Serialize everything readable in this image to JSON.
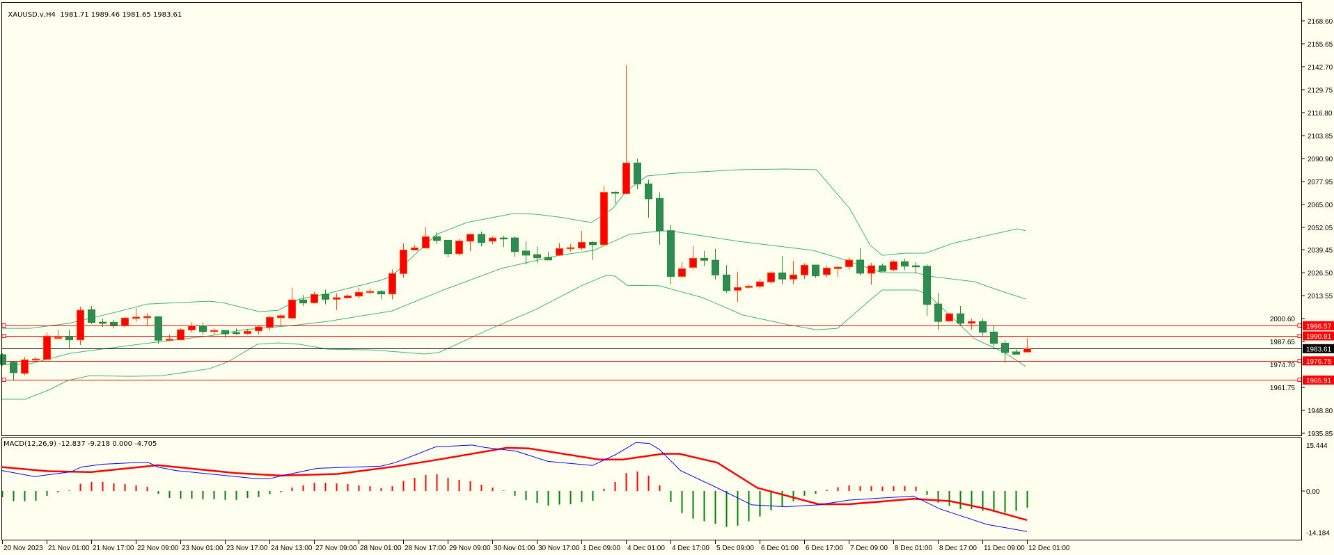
{
  "header": {
    "symbol_label": "XAUUSD.v,H4",
    "ohlc_readout": "1981.71 1989.46 1981.65 1983.61"
  },
  "macd_header": {
    "label": "MACD(12,26,9) -12.837 -9.218 0.000 -4.705"
  },
  "colors": {
    "background": "#fffff0",
    "bull_body": "#ff0000",
    "bull_outline": "#ff4500",
    "bear_body": "#2e8b57",
    "bear_outline": "#228b22",
    "bands": "#3cb371",
    "macd_main": "#0000ff",
    "macd_signal": "#ff0000",
    "level_line": "#ff0000",
    "bid_line": "#000000"
  },
  "price_axis": {
    "ticks": [
      "2168.60",
      "2155.65",
      "2142.70",
      "2129.75",
      "2116.80",
      "2103.85",
      "2090.90",
      "2077.95",
      "2065.00",
      "2052.05",
      "2039.45",
      "2026.50",
      "2013.55",
      "2000.60",
      "1987.65",
      "1974.70",
      "1961.75",
      "1948.80",
      "1935.85"
    ],
    "bid": {
      "price": 1983.61,
      "label": "1983.61"
    },
    "levels": [
      {
        "price": 1996.57,
        "label": "1996.57"
      },
      {
        "price": 1990.81,
        "label": "1990.81"
      },
      {
        "price": 1976.75,
        "label": "1976.75"
      },
      {
        "price": 1965.91,
        "label": "1965.91"
      }
    ]
  },
  "macd_axis": {
    "ticks": [
      "15.444",
      "0.00",
      "-14.184"
    ],
    "values": [
      15.444,
      0,
      -14.184
    ]
  },
  "time_axis": {
    "labels": [
      "20 Nov 2023",
      "21 Nov 01:00",
      "21 Nov 17:00",
      "22 Nov 09:00",
      "23 Nov 01:00",
      "23 Nov 17:00",
      "24 Nov 13:00",
      "27 Nov 09:00",
      "28 Nov 01:00",
      "28 Nov 17:00",
      "29 Nov 09:00",
      "30 Nov 01:00",
      "30 Nov 17:00",
      "1 Dec 09:00",
      "4 Dec 01:00",
      "4 Dec 17:00",
      "5 Dec 09:00",
      "6 Dec 01:00",
      "6 Dec 17:00",
      "7 Dec 09:00",
      "8 Dec 01:00",
      "8 Dec 17:00",
      "11 Dec 09:00",
      "12 Dec 01:00"
    ],
    "bars_per_label": 4
  },
  "chart_data": {
    "type": "candlestick",
    "symbol": "XAUUSD.v",
    "timeframe": "H4",
    "ylim": [
      1935.85,
      2168.6
    ],
    "ohlc": [
      [
        1980.2,
        1981,
        1973.9,
        1974.7
      ],
      [
        1975.9,
        1976.3,
        1965.7,
        1970.1
      ],
      [
        1969.7,
        1978.9,
        1968.7,
        1977.3
      ],
      [
        1977.2,
        1978.9,
        1975.8,
        1977.8
      ],
      [
        1977.6,
        1992.7,
        1977.5,
        1990.7
      ],
      [
        1989.5,
        1994.3,
        1989.3,
        1990
      ],
      [
        1990.5,
        1994.3,
        1984.1,
        1988.6
      ],
      [
        1988.6,
        2007.3,
        1985.7,
        2005.3
      ],
      [
        2005.6,
        2007.7,
        1997.6,
        1998.4
      ],
      [
        1998.6,
        2000.5,
        1995.9,
        1997.9
      ],
      [
        1998.5,
        1999.8,
        1995.1,
        1996.8
      ],
      [
        1996.6,
        2001.5,
        1995.6,
        2000.9
      ],
      [
        2000.7,
        2006.4,
        1998.8,
        2001.4
      ],
      [
        2001.1,
        2003.5,
        1996.6,
        2001.8
      ],
      [
        2001.6,
        2002,
        1986.5,
        1988.4
      ],
      [
        1988.3,
        1991.6,
        1988,
        1988.9
      ],
      [
        1988.6,
        1995.1,
        1988.6,
        1994.3
      ],
      [
        1994.2,
        1998.4,
        1992.8,
        1996.4
      ],
      [
        1996.3,
        1998.5,
        1991.6,
        1993.3
      ],
      [
        1993.3,
        1995.1,
        1991.5,
        1993.9
      ],
      [
        1993.9,
        1994,
        1989.7,
        1992
      ],
      [
        1992.7,
        1995.1,
        1991.5,
        1992.1
      ],
      [
        1992.2,
        1994.7,
        1991.5,
        1993.4
      ],
      [
        1993.7,
        1996.5,
        1991.7,
        1995.9
      ],
      [
        1995.6,
        2002.2,
        1993.6,
        2001.3
      ],
      [
        2001.1,
        2003.2,
        1996.5,
        2002.2
      ],
      [
        2000.9,
        2018.1,
        2000.3,
        2011.1
      ],
      [
        2011.1,
        2014,
        2007.6,
        2009.4
      ],
      [
        2009.5,
        2015.8,
        2009,
        2014.2
      ],
      [
        2014.2,
        2016.9,
        2008.6,
        2011.5
      ],
      [
        2011.5,
        2014.9,
        2005.4,
        2012.4
      ],
      [
        2012.3,
        2014.3,
        2012.1,
        2013.4
      ],
      [
        2013.3,
        2018.1,
        2011.9,
        2015.4
      ],
      [
        2015.4,
        2017.5,
        2014.4,
        2015.9
      ],
      [
        2015.9,
        2016.8,
        2011.6,
        2014.5
      ],
      [
        2014.5,
        2028.4,
        2011.3,
        2026
      ],
      [
        2026,
        2043,
        2023.6,
        2039.3
      ],
      [
        2039.3,
        2042.2,
        2039,
        2040.5
      ],
      [
        2040.4,
        2052.1,
        2040.4,
        2046.8
      ],
      [
        2046.8,
        2049.3,
        2042.6,
        2044.7
      ],
      [
        2044.8,
        2044.8,
        2035.1,
        2037.2
      ],
      [
        2037.2,
        2045.7,
        2036.2,
        2044.4
      ],
      [
        2044.3,
        2048.5,
        2038.7,
        2048.1
      ],
      [
        2048.1,
        2049.7,
        2041.4,
        2043.5
      ],
      [
        2044.3,
        2046.9,
        2042.5,
        2046.1
      ],
      [
        2046.1,
        2047.3,
        2041,
        2045.7
      ],
      [
        2046.1,
        2047,
        2035.5,
        2038.4
      ],
      [
        2038.7,
        2044.2,
        2031.3,
        2036.4
      ],
      [
        2036.7,
        2041.2,
        2032,
        2034.9
      ],
      [
        2035.1,
        2038.3,
        2033.7,
        2033.7
      ],
      [
        2036.4,
        2043.2,
        2035.9,
        2040.1
      ],
      [
        2040,
        2042.7,
        2038.4,
        2040.6
      ],
      [
        2040.4,
        2050.1,
        2039.1,
        2043.6
      ],
      [
        2043.6,
        2044.3,
        2033.7,
        2042.3
      ],
      [
        2042.3,
        2075.5,
        2042,
        2071.8
      ],
      [
        2071.9,
        2072.4,
        2065.5,
        2071.4
      ],
      [
        2071.1,
        2143.7,
        2071,
        2088.4
      ],
      [
        2088.4,
        2090.8,
        2073.7,
        2076.6
      ],
      [
        2076.6,
        2079,
        2057.6,
        2068.2
      ],
      [
        2068.4,
        2071.8,
        2042.3,
        2050.1
      ],
      [
        2050.2,
        2053.5,
        2020.1,
        2024.4
      ],
      [
        2024.4,
        2032.5,
        2024,
        2028.7
      ],
      [
        2029.5,
        2041.4,
        2028.4,
        2034.6
      ],
      [
        2034.6,
        2038.7,
        2030.2,
        2033.5
      ],
      [
        2033.5,
        2039.9,
        2022.7,
        2025.2
      ],
      [
        2025.2,
        2030.7,
        2015.2,
        2016.4
      ],
      [
        2016.6,
        2026.9,
        2009.9,
        2018.1
      ],
      [
        2018.2,
        2019.9,
        2017.6,
        2018.9
      ],
      [
        2018.8,
        2022.8,
        2017.5,
        2021.3
      ],
      [
        2021.3,
        2027.3,
        2020.4,
        2026.4
      ],
      [
        2026.4,
        2035.9,
        2020,
        2022.9
      ],
      [
        2022.9,
        2033.2,
        2020,
        2025.2
      ],
      [
        2025.2,
        2031.8,
        2023,
        2030.7
      ],
      [
        2030.8,
        2030.8,
        2023.5,
        2024.7
      ],
      [
        2025.4,
        2030.4,
        2023.8,
        2029.1
      ],
      [
        2028.8,
        2030.2,
        2024,
        2029.6
      ],
      [
        2029.9,
        2035.1,
        2028.1,
        2033.6
      ],
      [
        2033.6,
        2040.3,
        2024.9,
        2026.2
      ],
      [
        2026.2,
        2032,
        2019.8,
        2030.4
      ],
      [
        2030.4,
        2031.6,
        2027.3,
        2027.3
      ],
      [
        2028.2,
        2033.5,
        2027.3,
        2032.7
      ],
      [
        2032.7,
        2034.3,
        2027.9,
        2030.2
      ],
      [
        2030.4,
        2032.4,
        2026,
        2029.8
      ],
      [
        2030.1,
        2031.2,
        2002.2,
        2008.6
      ],
      [
        2008.8,
        2015.1,
        1994.3,
        1999
      ],
      [
        1999.2,
        2003.7,
        1999,
        2003.3
      ],
      [
        2003.3,
        2007.7,
        1996.8,
        1998
      ],
      [
        1998,
        2000.5,
        1994.3,
        1998.9
      ],
      [
        1998.9,
        2000.5,
        1990.9,
        1992.9
      ],
      [
        1993,
        1996.8,
        1985,
        1986.6
      ],
      [
        1986.7,
        1988.4,
        1975.6,
        1981.5
      ],
      [
        1981.8,
        1983.3,
        1980.5,
        1980.5
      ],
      [
        1981.71,
        1989.46,
        1981.65,
        1983.61
      ]
    ],
    "bollinger": {
      "upper": [
        [
          0,
          1995.1
        ],
        [
          2.5,
          1995.1
        ],
        [
          6,
          1997.9
        ],
        [
          10.4,
          2004.5
        ],
        [
          13,
          2008.8
        ],
        [
          18.6,
          2010.4
        ],
        [
          19.8,
          2009.6
        ],
        [
          23.1,
          2004.5
        ],
        [
          24.8,
          2005.3
        ],
        [
          26.7,
          2011.6
        ],
        [
          29.2,
          2014.7
        ],
        [
          34,
          2022.2
        ],
        [
          35,
          2024.6
        ],
        [
          39,
          2048.1
        ],
        [
          41.7,
          2054.8
        ],
        [
          45.9,
          2059.9
        ],
        [
          47.9,
          2059.5
        ],
        [
          50,
          2057.9
        ],
        [
          52.9,
          2054.8
        ],
        [
          54.8,
          2062.6
        ],
        [
          56,
          2072.4
        ],
        [
          57.9,
          2081.1
        ],
        [
          60.4,
          2082.6
        ],
        [
          66.1,
          2084.6
        ],
        [
          70.3,
          2085
        ],
        [
          73.1,
          2084.6
        ],
        [
          76.1,
          2062.6
        ],
        [
          77.9,
          2042.2
        ],
        [
          79,
          2036.3
        ],
        [
          81.1,
          2037.5
        ],
        [
          82.9,
          2037.5
        ],
        [
          85.3,
          2043
        ],
        [
          91.1,
          2051.2
        ],
        [
          91.9,
          2050.1
        ]
      ],
      "middle": [
        [
          0,
          1974.7
        ],
        [
          2.5,
          1975.1
        ],
        [
          6.1,
          1981
        ],
        [
          12.3,
          1986.1
        ],
        [
          18.6,
          1990.8
        ],
        [
          21.7,
          1994.3
        ],
        [
          26.1,
          1996.7
        ],
        [
          29.2,
          1999
        ],
        [
          35,
          2004.9
        ],
        [
          39.6,
          2016.7
        ],
        [
          44.8,
          2028.9
        ],
        [
          50,
          2036.3
        ],
        [
          53.1,
          2039.1
        ],
        [
          54.2,
          2042.2
        ],
        [
          56.3,
          2048.1
        ],
        [
          59.2,
          2050.1
        ],
        [
          60.4,
          2049.7
        ],
        [
          66.1,
          2044.2
        ],
        [
          72.8,
          2039.1
        ],
        [
          75.3,
          2034.4
        ],
        [
          79,
          2026.5
        ],
        [
          82.1,
          2026.5
        ],
        [
          83.1,
          2024.6
        ],
        [
          87.3,
          2021.4
        ],
        [
          89.4,
          2016.7
        ],
        [
          91.9,
          2011.6
        ]
      ],
      "lower": [
        [
          0,
          1955.1
        ],
        [
          2.1,
          1955.1
        ],
        [
          4.3,
          1960.6
        ],
        [
          5.9,
          1965.7
        ],
        [
          7.9,
          1968.4
        ],
        [
          11.5,
          1968
        ],
        [
          14.4,
          1968.4
        ],
        [
          18.6,
          1972.3
        ],
        [
          20.3,
          1976.3
        ],
        [
          22.9,
          1986.1
        ],
        [
          24.8,
          1986.9
        ],
        [
          26.7,
          1986.1
        ],
        [
          29.2,
          1983.3
        ],
        [
          33.4,
          1982.9
        ],
        [
          37.9,
          1980.6
        ],
        [
          39.2,
          1981.4
        ],
        [
          40,
          1983.7
        ],
        [
          43.8,
          1994.7
        ],
        [
          47.9,
          2005.7
        ],
        [
          52.1,
          2019.4
        ],
        [
          54.2,
          2024.9
        ],
        [
          55,
          2024.6
        ],
        [
          56.1,
          2019.4
        ],
        [
          59,
          2019.1
        ],
        [
          62.9,
          2012.4
        ],
        [
          66.5,
          2002.6
        ],
        [
          70.6,
          1997.1
        ],
        [
          73.1,
          1994.3
        ],
        [
          75,
          1995.1
        ],
        [
          77.8,
          2010.4
        ],
        [
          79,
          2016.7
        ],
        [
          82.1,
          2016.7
        ],
        [
          83.1,
          2014.3
        ],
        [
          87.3,
          1989.2
        ],
        [
          90,
          1981.4
        ],
        [
          91.9,
          1973.5
        ]
      ]
    },
    "macd": {
      "ylim": [
        -14.184,
        15.444
      ],
      "main": [
        [
          0,
          6.5
        ],
        [
          2.9,
          4.6
        ],
        [
          6.2,
          6.1
        ],
        [
          7.1,
          7.6
        ],
        [
          9,
          8.5
        ],
        [
          12.5,
          9.1
        ],
        [
          13.1,
          9.1
        ],
        [
          14,
          7.6
        ],
        [
          15.6,
          6.5
        ],
        [
          21,
          4.6
        ],
        [
          22.8,
          3.9
        ],
        [
          24,
          3.9
        ],
        [
          25.3,
          5
        ],
        [
          28.3,
          7.2
        ],
        [
          34,
          7.9
        ],
        [
          35.3,
          9
        ],
        [
          38.9,
          14
        ],
        [
          42.2,
          14.6
        ],
        [
          43.4,
          13.8
        ],
        [
          46.1,
          12.7
        ],
        [
          49,
          9.4
        ],
        [
          53,
          8.1
        ],
        [
          55.1,
          11.6
        ],
        [
          56.9,
          15.4
        ],
        [
          58.1,
          15.1
        ],
        [
          59,
          13.2
        ],
        [
          60.9,
          6.5
        ],
        [
          64.2,
          1
        ],
        [
          67.3,
          -4.4
        ],
        [
          70.3,
          -5
        ],
        [
          73.3,
          -4.4
        ],
        [
          76,
          -2.9
        ],
        [
          81.8,
          -1.6
        ],
        [
          84.2,
          -5.7
        ],
        [
          88.4,
          -10.6
        ],
        [
          92,
          -12.837
        ]
      ],
      "signal": [
        [
          0,
          7.6
        ],
        [
          4.1,
          6.3
        ],
        [
          8,
          6
        ],
        [
          14,
          8.2
        ],
        [
          21,
          5.7
        ],
        [
          25,
          4.9
        ],
        [
          30.1,
          5.4
        ],
        [
          35.3,
          7.8
        ],
        [
          39.2,
          10
        ],
        [
          45.3,
          13.7
        ],
        [
          47.3,
          13.5
        ],
        [
          53.6,
          10
        ],
        [
          55.7,
          10
        ],
        [
          59.3,
          11.8
        ],
        [
          60.8,
          11.8
        ],
        [
          64.2,
          9
        ],
        [
          67.8,
          1
        ],
        [
          73.3,
          -4.2
        ],
        [
          76,
          -4.2
        ],
        [
          81.8,
          -2.5
        ],
        [
          85.1,
          -3.2
        ],
        [
          88.4,
          -5.7
        ],
        [
          92,
          -9.218
        ]
      ],
      "histogram": [
        -2,
        -3.2,
        -3.2,
        -3.1,
        -1.5,
        -0.4,
        0.2,
        2.3,
        2.9,
        2.9,
        2.4,
        2.2,
        1.8,
        1.3,
        -0.9,
        -2.2,
        -2.4,
        -2.4,
        -2.6,
        -2.6,
        -2.8,
        -2.8,
        -2.2,
        -1.9,
        -1,
        -0.4,
        1.1,
        1.8,
        2.6,
        2.6,
        2.4,
        2.2,
        1.8,
        1.5,
        0.9,
        1.5,
        3.2,
        4.2,
        5.1,
        5.3,
        4.2,
        3.5,
        3.1,
        2,
        1.1,
        0.2,
        -1.5,
        -2.9,
        -3.75,
        -4.6,
        -4.3,
        -4.2,
        -3.5,
        -3.1,
        0.7,
        2.9,
        5.7,
        6.2,
        4.9,
        1.8,
        -3.5,
        -7,
        -8.75,
        -9.6,
        -10.4,
        -11.4,
        -11,
        -9.6,
        -8.1,
        -6.1,
        -4.8,
        -3.2,
        -1.5,
        -0.9,
        0.4,
        1.2,
        1.8,
        1.5,
        1.5,
        1.4,
        1.5,
        1.5,
        1.4,
        -1.25,
        -3.7,
        -4.7,
        -5.7,
        -5.7,
        -6.3,
        -6.6,
        -6.8,
        -6.3,
        -5.3
      ]
    }
  }
}
